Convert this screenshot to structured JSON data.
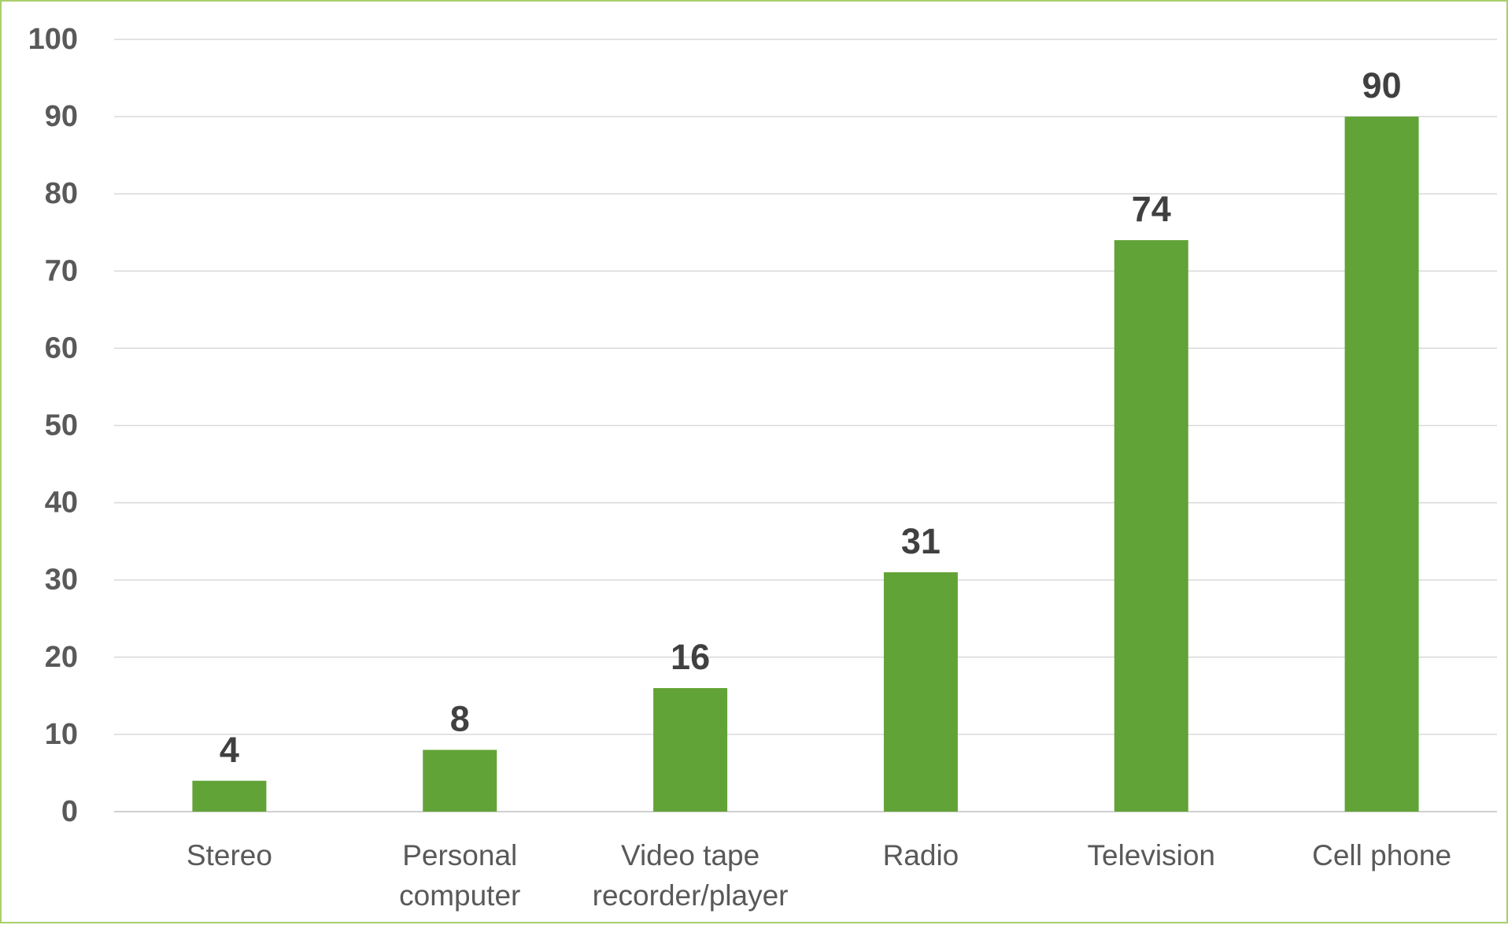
{
  "chart_data": {
    "type": "bar",
    "categories": [
      [
        "Stereo"
      ],
      [
        "Personal",
        "computer"
      ],
      [
        "Video tape",
        "recorder/player"
      ],
      [
        "Radio"
      ],
      [
        "Television"
      ],
      [
        "Cell phone"
      ]
    ],
    "values": [
      4,
      8,
      16,
      31,
      74,
      90
    ],
    "data_labels": [
      "4",
      "8",
      "16",
      "31",
      "74",
      "90"
    ],
    "ylim": [
      0,
      100
    ],
    "yticks": [
      0,
      10,
      20,
      30,
      40,
      50,
      60,
      70,
      80,
      90,
      100
    ],
    "title": "",
    "xlabel": "",
    "ylabel": "",
    "grid": true,
    "legend": "none",
    "colors": {
      "bar": "#62a337",
      "frame": "#a9cf6b",
      "grid": "#d9d9d9",
      "tick_text": "#595959",
      "label_text": "#404040"
    }
  }
}
